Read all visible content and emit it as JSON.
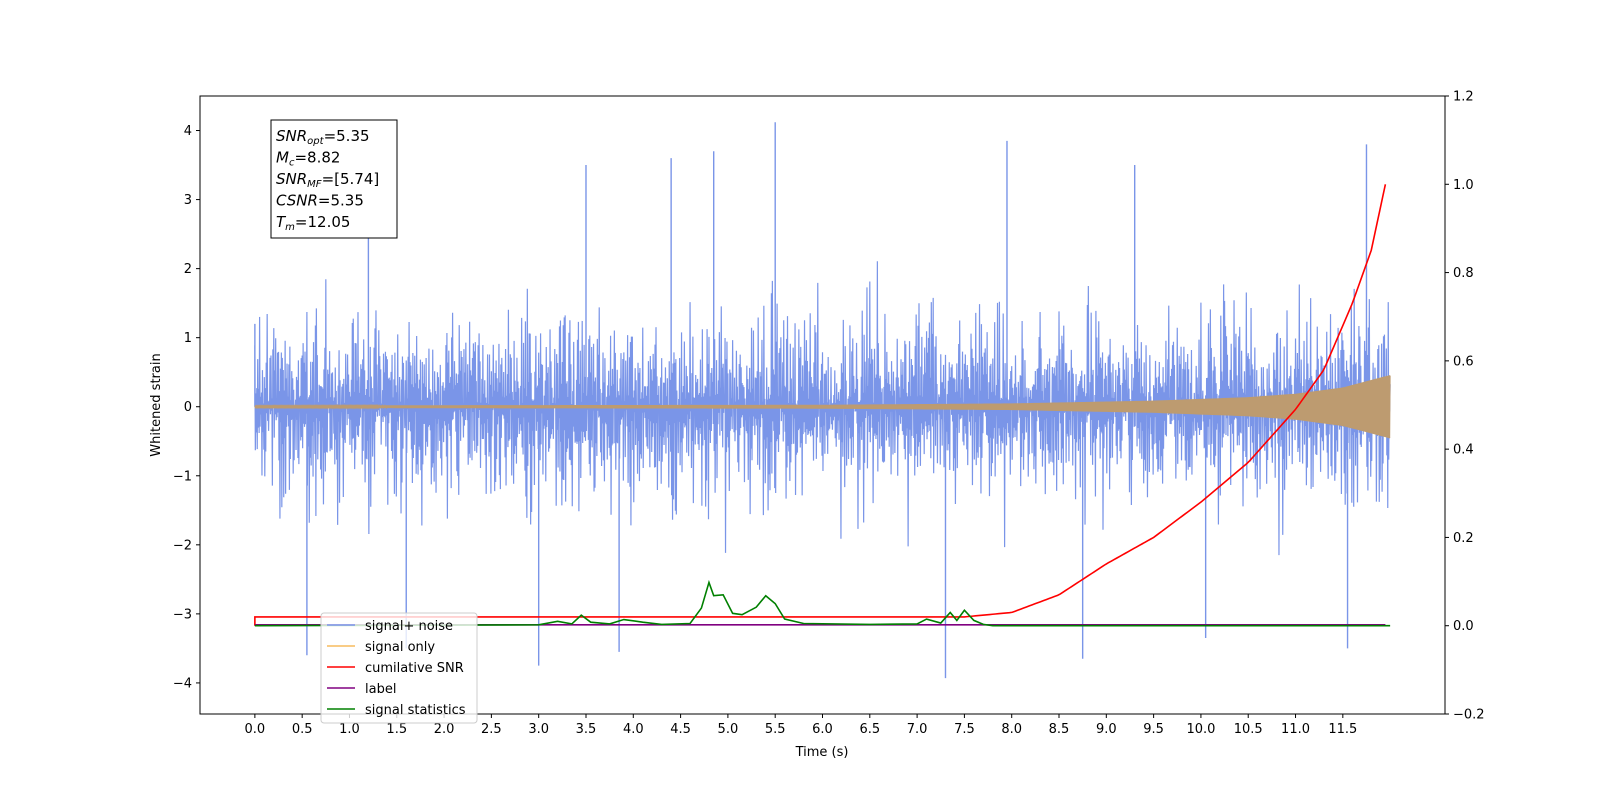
{
  "chart_data": {
    "type": "line",
    "xlabel": "Time (s)",
    "ylabel": "Whitened strain",
    "xlim": [
      -0.58,
      12.58
    ],
    "ylim": [
      -4.45,
      4.5
    ],
    "y2lim": [
      -0.2,
      1.2
    ],
    "x_ticks": [
      0.0,
      0.5,
      1.0,
      1.5,
      2.0,
      2.5,
      3.0,
      3.5,
      4.0,
      4.5,
      5.0,
      5.5,
      6.0,
      6.5,
      7.0,
      7.5,
      8.0,
      8.5,
      9.0,
      9.5,
      10.0,
      10.5,
      11.0,
      11.5
    ],
    "x_tick_labels": [
      "0.0",
      "0.5",
      "1.0",
      "1.5",
      "2.0",
      "2.5",
      "3.0",
      "3.5",
      "4.0",
      "4.5",
      "5.0",
      "5.5",
      "6.0",
      "6.5",
      "7.0",
      "7.5",
      "8.0",
      "8.5",
      "9.0",
      "9.5",
      "10.0",
      "10.5",
      "11.0",
      "11.5"
    ],
    "y_ticks": [
      -4,
      -3,
      -2,
      -1,
      0,
      1,
      2,
      3,
      4
    ],
    "y_tick_labels": [
      "−4",
      "−3",
      "−2",
      "−1",
      "0",
      "1",
      "2",
      "3",
      "4"
    ],
    "y2_ticks": [
      -0.2,
      0.0,
      0.2,
      0.4,
      0.6,
      0.8,
      1.0,
      1.2
    ],
    "y2_tick_labels": [
      "−0.2",
      "0.0",
      "0.2",
      "0.4",
      "0.6",
      "0.8",
      "1.0",
      "1.2"
    ],
    "grid": false,
    "legend_position": "lower-left",
    "annotation": {
      "lines": [
        {
          "base": "SNR",
          "sub": "opt",
          "value": "=5.35"
        },
        {
          "base": "M",
          "sub": "c",
          "value": "=8.82"
        },
        {
          "base": "SNR",
          "sub": "MF",
          "value": "=[5.74]"
        },
        {
          "base": "CSNR",
          "sub": "",
          "value": "=5.35"
        },
        {
          "base": "T",
          "sub": "m",
          "value": "=12.05"
        }
      ]
    },
    "series": [
      {
        "name": "signal+ noise",
        "color": "#7a95e8",
        "axis": "left",
        "style": "noise",
        "x_range": [
          0.0,
          12.0
        ],
        "envelope_typical": 2.5,
        "min": -3.93,
        "max": 4.12,
        "peaks": [
          [
            0.0,
            1.2
          ],
          [
            1.2,
            3.0
          ],
          [
            3.5,
            3.5
          ],
          [
            4.4,
            3.6
          ],
          [
            4.85,
            3.7
          ],
          [
            5.5,
            4.12
          ],
          [
            7.95,
            3.85
          ],
          [
            9.3,
            3.5
          ],
          [
            11.75,
            3.8
          ]
        ],
        "troughs": [
          [
            0.55,
            -3.6
          ],
          [
            1.6,
            -3.5
          ],
          [
            3.0,
            -3.75
          ],
          [
            3.85,
            -3.55
          ],
          [
            7.3,
            -3.93
          ],
          [
            8.75,
            -3.65
          ],
          [
            10.05,
            -3.35
          ],
          [
            11.55,
            -3.5
          ]
        ]
      },
      {
        "name": "signal only",
        "color": "#f7bc5f",
        "axis": "left",
        "style": "chirp",
        "x_range": [
          0.0,
          12.0
        ],
        "amplitude": [
          [
            0.0,
            0.01
          ],
          [
            6.0,
            0.02
          ],
          [
            8.0,
            0.04
          ],
          [
            9.5,
            0.08
          ],
          [
            10.5,
            0.13
          ],
          [
            11.0,
            0.18
          ],
          [
            11.5,
            0.27
          ],
          [
            12.0,
            0.45
          ]
        ]
      },
      {
        "name": "cumilative SNR",
        "color": "#ff0000",
        "axis": "right",
        "style": "line",
        "x": [
          0.0,
          7.5,
          8.0,
          8.5,
          9.0,
          9.5,
          10.0,
          10.5,
          11.0,
          11.3,
          11.6,
          11.8,
          11.95
        ],
        "values": [
          0.02,
          0.02,
          0.03,
          0.07,
          0.14,
          0.2,
          0.28,
          0.37,
          0.49,
          0.58,
          0.73,
          0.85,
          1.0
        ]
      },
      {
        "name": "label",
        "color": "#800080",
        "axis": "right",
        "style": "line",
        "x": [
          0.0,
          11.95
        ],
        "values": [
          0.002,
          0.002
        ]
      },
      {
        "name": "signal statistics",
        "color": "#008000",
        "axis": "right",
        "style": "line",
        "x": [
          0.0,
          3.0,
          3.2,
          3.35,
          3.45,
          3.55,
          3.75,
          3.9,
          4.1,
          4.3,
          4.6,
          4.72,
          4.8,
          4.85,
          4.95,
          5.05,
          5.15,
          5.3,
          5.4,
          5.5,
          5.6,
          5.8,
          6.5,
          7.0,
          7.1,
          7.25,
          7.35,
          7.42,
          7.5,
          7.6,
          7.7,
          7.8,
          12.0
        ],
        "values": [
          0.0,
          0.002,
          0.01,
          0.004,
          0.024,
          0.008,
          0.004,
          0.014,
          0.008,
          0.003,
          0.005,
          0.04,
          0.098,
          0.068,
          0.07,
          0.028,
          0.025,
          0.042,
          0.068,
          0.05,
          0.015,
          0.005,
          0.003,
          0.004,
          0.015,
          0.006,
          0.03,
          0.012,
          0.035,
          0.012,
          0.003,
          0.0,
          0.0
        ]
      }
    ],
    "legend_entries": [
      {
        "label": "signal+ noise",
        "color": "#7a95e8"
      },
      {
        "label": "signal only",
        "color": "#f7bc5f"
      },
      {
        "label": "cumilative SNR",
        "color": "#ff0000"
      },
      {
        "label": "label",
        "color": "#800080"
      },
      {
        "label": "signal statistics",
        "color": "#008000"
      }
    ]
  }
}
